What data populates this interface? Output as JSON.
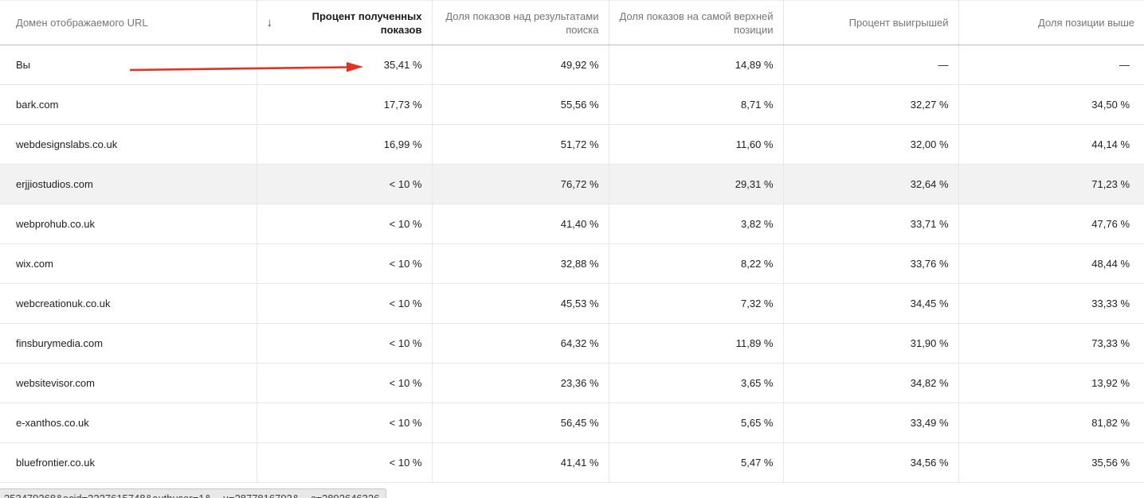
{
  "table": {
    "sort_icon": "↓",
    "columns": [
      {
        "label": "Домен отображаемого URL"
      },
      {
        "label": "Процент полученных показов",
        "sorted": true
      },
      {
        "label": "Доля показов над результатами поиска"
      },
      {
        "label": "Доля показов на самой верхней позиции"
      },
      {
        "label": "Процент выигрышей"
      },
      {
        "label": "Доля позиции выше"
      }
    ],
    "rows": [
      {
        "domain": "Вы",
        "impression_share": "35,41 %",
        "above_results": "49,92 %",
        "top_position": "14,89 %",
        "win_rate": "—",
        "position_above": "—",
        "annotated": true
      },
      {
        "domain": "bark.com",
        "impression_share": "17,73 %",
        "above_results": "55,56 %",
        "top_position": "8,71 %",
        "win_rate": "32,27 %",
        "position_above": "34,50 %"
      },
      {
        "domain": "webdesignslabs.co.uk",
        "impression_share": "16,99 %",
        "above_results": "51,72 %",
        "top_position": "11,60 %",
        "win_rate": "32,00 %",
        "position_above": "44,14 %"
      },
      {
        "domain": "erjjiostudios.com",
        "impression_share": "< 10 %",
        "above_results": "76,72 %",
        "top_position": "29,31 %",
        "win_rate": "32,64 %",
        "position_above": "71,23 %",
        "highlighted": true
      },
      {
        "domain": "webprohub.co.uk",
        "impression_share": "< 10 %",
        "above_results": "41,40 %",
        "top_position": "3,82 %",
        "win_rate": "33,71 %",
        "position_above": "47,76 %"
      },
      {
        "domain": "wix.com",
        "impression_share": "< 10 %",
        "above_results": "32,88 %",
        "top_position": "8,22 %",
        "win_rate": "33,76 %",
        "position_above": "48,44 %"
      },
      {
        "domain": "webcreationuk.co.uk",
        "impression_share": "< 10 %",
        "above_results": "45,53 %",
        "top_position": "7,32 %",
        "win_rate": "34,45 %",
        "position_above": "33,33 %"
      },
      {
        "domain": "finsburymedia.com",
        "impression_share": "< 10 %",
        "above_results": "64,32 %",
        "top_position": "11,89 %",
        "win_rate": "31,90 %",
        "position_above": "73,33 %"
      },
      {
        "domain": "websitevisor.com",
        "impression_share": "< 10 %",
        "above_results": "23,36 %",
        "top_position": "3,65 %",
        "win_rate": "34,82 %",
        "position_above": "13,92 %"
      },
      {
        "domain": "e-xanthos.co.uk",
        "impression_share": "< 10 %",
        "above_results": "56,45 %",
        "top_position": "5,65 %",
        "win_rate": "33,49 %",
        "position_above": "81,82 %"
      },
      {
        "domain": "bluefrontier.co.uk",
        "impression_share": "< 10 %",
        "above_results": "41,41 %",
        "top_position": "5,47 %",
        "win_rate": "34,56 %",
        "position_above": "35,56 %"
      }
    ]
  },
  "annotation": {
    "type": "red-arrow",
    "color": "#e33122",
    "points_to": "35,41 %"
  },
  "status_bar": {
    "url_fragment": "253479368&ocid=3227615748&authuser=1&__u=2877816793&__c=2892646326"
  },
  "colors": {
    "row_highlight": "#f2f2f2",
    "header_text": "#757575",
    "sorted_header_text": "#1c1c1c",
    "body_text": "#212121",
    "border": "#e8e8e8"
  }
}
